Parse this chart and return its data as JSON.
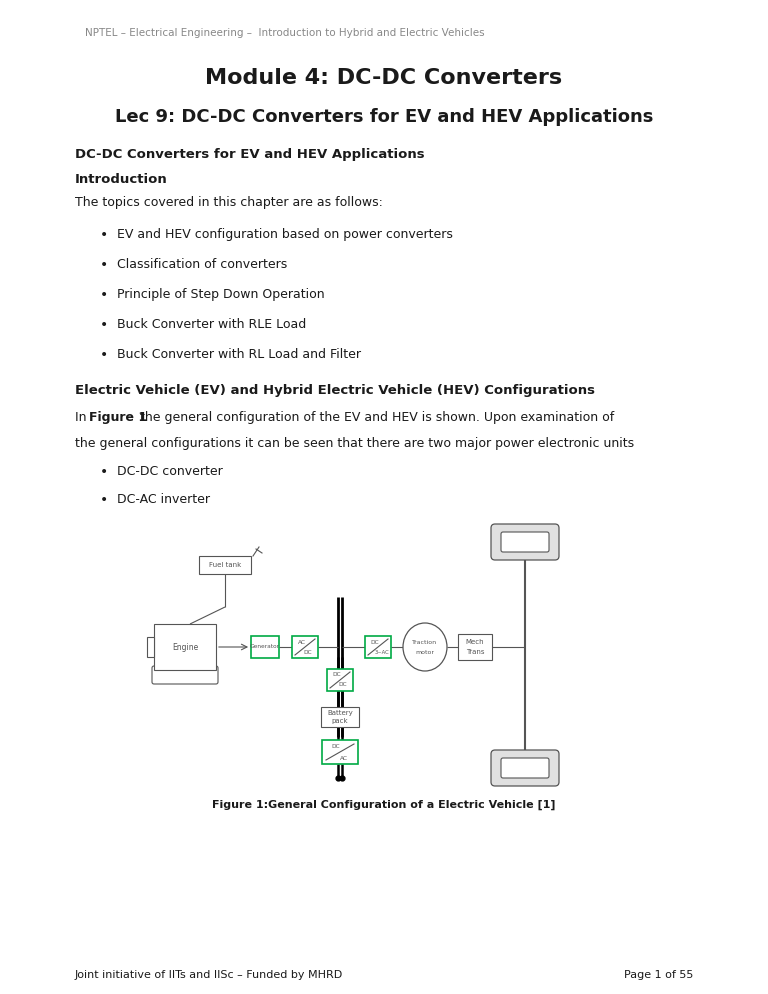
{
  "header": "NPTEL – Electrical Engineering –  Introduction to Hybrid and Electric Vehicles",
  "title": "Module 4: DC-DC Converters",
  "subtitle": "Lec 9: DC-DC Converters for EV and HEV Applications",
  "section1": "DC-DC Converters for EV and HEV Applications",
  "section2": "Introduction",
  "intro_text": "The topics covered in this chapter are as follows:",
  "bullets1": [
    "EV and HEV configuration based on power converters",
    "Classification of converters",
    "Principle of Step Down Operation",
    "Buck Converter with RLE Load",
    "Buck Converter with RL Load and Filter"
  ],
  "section3": "Electric Vehicle (EV) and Hybrid Electric Vehicle (HEV) Configurations",
  "para1a": "In ",
  "para1b": "Figure 1",
  "para1c": " the general configuration of the EV and HEV is shown. Upon examination of",
  "para2": "the general configurations it can be seen that there are two major power electronic units",
  "bullets2": [
    "DC-DC converter",
    "DC-AC inverter"
  ],
  "fig_caption": "Figure 1:General Configuration of a Electric Vehicle [1]",
  "footer_left": "Joint initiative of IITs and IISc – Funded by MHRD",
  "footer_right": "Page 1 of 55",
  "bg_color": "#ffffff",
  "text_color": "#1a1a1a",
  "header_color": "#888888",
  "gray_color": "#555555",
  "green_color": "#00aa44",
  "black_color": "#000000"
}
